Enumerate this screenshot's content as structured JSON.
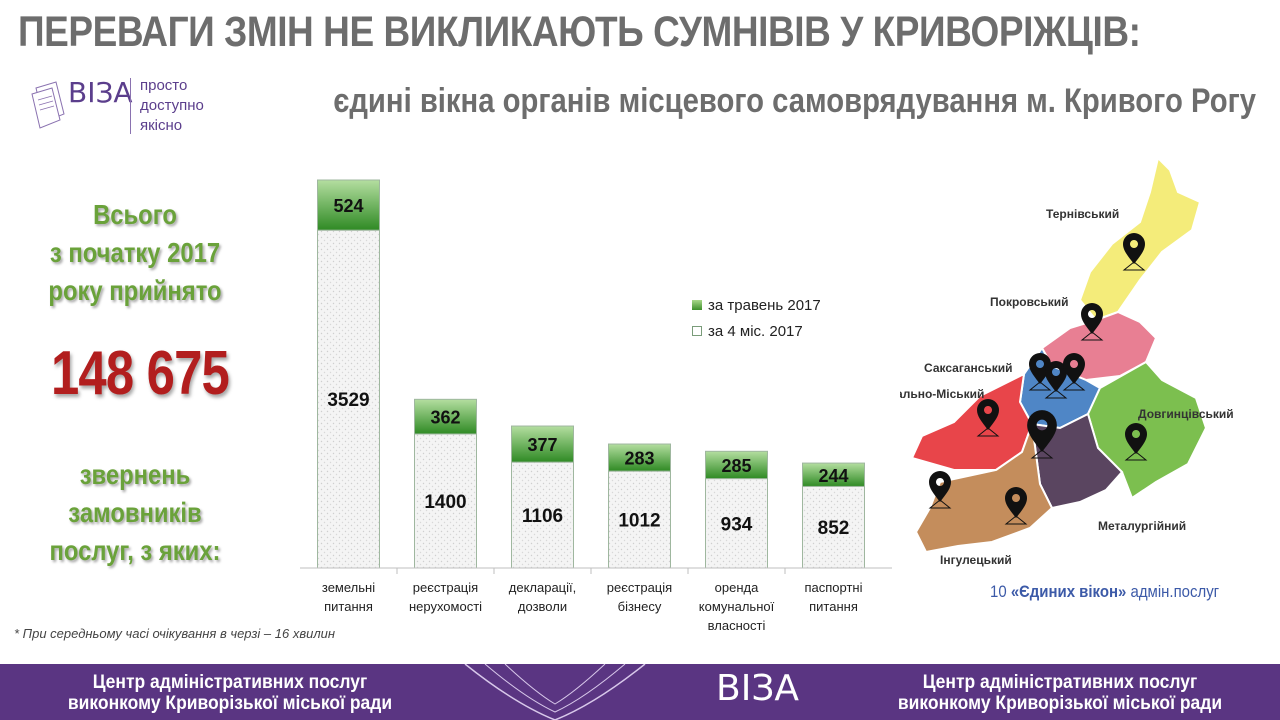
{
  "header": {
    "title": "ПЕРЕВАГИ ЗМІН НЕ ВИКЛИКАЮТЬ СУМНІВІВ У КРИВОРІЖЦІВ:",
    "subtitle": "єдині вікна органів місцевого самоврядування м. Кривого Рогу"
  },
  "logo": {
    "name": "ВІЗА",
    "tagline_1": "просто",
    "tagline_2": "доступно",
    "tagline_3": "якісно"
  },
  "sidebar": {
    "lead_1": "Всього",
    "lead_2": "з початку 2017",
    "lead_3": "року прийнято",
    "total": "148 675",
    "tail_1": "звернень",
    "tail_2": "замовників",
    "tail_3": "послуг, з яких:"
  },
  "chart_data": {
    "type": "bar",
    "stacked": true,
    "categories": [
      [
        "земельні",
        "питання"
      ],
      [
        "реєстрація",
        "нерухомості"
      ],
      [
        "декларації,",
        "дозволи"
      ],
      [
        "реєстрація",
        "бізнесу"
      ],
      [
        "оренда",
        "комунальної",
        "власності"
      ],
      [
        "паспортні",
        "питання"
      ]
    ],
    "series": [
      {
        "name": "за 4 міс. 2017",
        "values": [
          3529,
          1400,
          1106,
          1012,
          934,
          852
        ],
        "color": "#ffffff"
      },
      {
        "name": "за травень 2017",
        "values": [
          524,
          362,
          377,
          283,
          285,
          244
        ],
        "color": "#5aa63c"
      }
    ],
    "legend_position": "right",
    "ylim": [
      0,
      4053
    ]
  },
  "legend": {
    "new_label": "за травень 2017",
    "old_label": "за 4 міс. 2017"
  },
  "footnote": "* При середньому часі очікування в черзі – 16 хвилин",
  "map": {
    "districts": [
      {
        "name": "Тернівський",
        "color": "#f4ec7a"
      },
      {
        "name": "Покровський",
        "color": "#e87f93"
      },
      {
        "name": "Саксаганський",
        "color": "#4f86c6"
      },
      {
        "name": "Центрально-Міський",
        "color": "#e8454a"
      },
      {
        "name": "Довгинцівський",
        "color": "#7cbf4f"
      },
      {
        "name": "Металургійний",
        "color": "#5a4560"
      },
      {
        "name": "Інгулецький",
        "color": "#c48d5c"
      }
    ],
    "note_count": "10",
    "note_bold": "«Єдиних вікон»",
    "note_rest": "адмін.послуг"
  },
  "footer": {
    "line_1": "Центр адміністративних послуг",
    "line_2": "виконкому Криворізької міської ради",
    "logo": "ВІЗА"
  }
}
